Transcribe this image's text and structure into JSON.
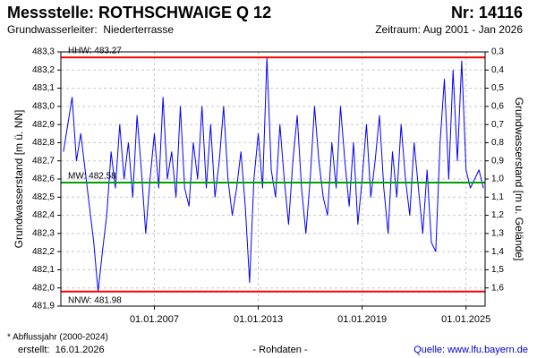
{
  "chart_data": {
    "type": "line",
    "title": "Messstelle: ROTHSCHWAIGE Q 12",
    "number": "Nr: 14116",
    "subtitle": "Grundwasserleiter:  Niederterrasse",
    "period": "Zeitraum: Aug 2001 - Jan 2026",
    "ylabel": "Grundwasserstand [m ü. NN]",
    "y2label": "Grundwasserstand [m u. Gelände]",
    "footnote": "* Abflussjahr (2000-2024)",
    "created": "erstellt:  16.01.2026",
    "data_note": "- Rohdaten -",
    "source": "Quelle: www.lfu.bayern.de",
    "grid": true,
    "xlim": [
      2001.6,
      2026.1
    ],
    "xticks": [
      {
        "value": 2007,
        "label": "01.01.2007"
      },
      {
        "value": 2013,
        "label": "01.01.2013"
      },
      {
        "value": 2019,
        "label": "01.01.2019"
      },
      {
        "value": 2025,
        "label": "01.01.2025"
      }
    ],
    "ylim": [
      481.9,
      483.3
    ],
    "yticks": [
      {
        "value": 481.9,
        "label": "481,9"
      },
      {
        "value": 482.0,
        "label": "482,0"
      },
      {
        "value": 482.1,
        "label": "482,1"
      },
      {
        "value": 482.2,
        "label": "482,2"
      },
      {
        "value": 482.3,
        "label": "482,3"
      },
      {
        "value": 482.4,
        "label": "482,4"
      },
      {
        "value": 482.5,
        "label": "482,5"
      },
      {
        "value": 482.6,
        "label": "482,6"
      },
      {
        "value": 482.7,
        "label": "482,7"
      },
      {
        "value": 482.8,
        "label": "482,8"
      },
      {
        "value": 482.9,
        "label": "482,9"
      },
      {
        "value": 483.0,
        "label": "483,0"
      },
      {
        "value": 483.1,
        "label": "483,1"
      },
      {
        "value": 483.2,
        "label": "483,2"
      },
      {
        "value": 483.3,
        "label": "483,3"
      }
    ],
    "y2lim": [
      1.7,
      0.3
    ],
    "y2ticks": [
      {
        "value": 0.3,
        "label": "0,3"
      },
      {
        "value": 0.4,
        "label": "0,4"
      },
      {
        "value": 0.5,
        "label": "0,5"
      },
      {
        "value": 0.6,
        "label": "0,6"
      },
      {
        "value": 0.7,
        "label": "0,7"
      },
      {
        "value": 0.8,
        "label": "0,8"
      },
      {
        "value": 0.9,
        "label": "0,9"
      },
      {
        "value": 1.0,
        "label": "1,0"
      },
      {
        "value": 1.1,
        "label": "1,1"
      },
      {
        "value": 1.2,
        "label": "1,2"
      },
      {
        "value": 1.3,
        "label": "1,3"
      },
      {
        "value": 1.4,
        "label": "1,4"
      },
      {
        "value": 1.5,
        "label": "1,5"
      },
      {
        "value": 1.6,
        "label": "1,6"
      }
    ],
    "reference_lines": [
      {
        "label": "HHW: 483.27",
        "value": 483.27,
        "color": "#ff0000"
      },
      {
        "label": "MW: 482.58",
        "value": 482.58,
        "color": "#00a000"
      },
      {
        "label": "NNW: 481.98",
        "value": 481.98,
        "color": "#ff0000"
      }
    ],
    "series": [
      {
        "color": "#0000ff",
        "x": [
          2001.75,
          2002.0,
          2002.25,
          2002.5,
          2002.75,
          2003.0,
          2003.25,
          2003.5,
          2003.75,
          2004.0,
          2004.25,
          2004.5,
          2004.75,
          2005.0,
          2005.25,
          2005.5,
          2005.75,
          2006.0,
          2006.25,
          2006.5,
          2006.75,
          2007.0,
          2007.25,
          2007.5,
          2007.75,
          2008.0,
          2008.25,
          2008.5,
          2008.75,
          2009.0,
          2009.25,
          2009.5,
          2009.75,
          2010.0,
          2010.25,
          2010.5,
          2010.75,
          2011.0,
          2011.25,
          2011.5,
          2011.75,
          2012.0,
          2012.25,
          2012.5,
          2012.75,
          2013.0,
          2013.25,
          2013.5,
          2013.75,
          2014.0,
          2014.25,
          2014.5,
          2014.75,
          2015.0,
          2015.25,
          2015.5,
          2015.75,
          2016.0,
          2016.25,
          2016.5,
          2016.75,
          2017.0,
          2017.25,
          2017.5,
          2017.75,
          2018.0,
          2018.25,
          2018.5,
          2018.75,
          2019.0,
          2019.25,
          2019.5,
          2019.75,
          2020.0,
          2020.25,
          2020.5,
          2020.75,
          2021.0,
          2021.25,
          2021.5,
          2021.75,
          2022.0,
          2022.25,
          2022.5,
          2022.75,
          2023.0,
          2023.25,
          2023.5,
          2023.75,
          2024.0,
          2024.25,
          2024.5,
          2024.75,
          2025.0,
          2025.25,
          2025.5,
          2025.75,
          2026.0
        ],
        "values": [
          482.75,
          482.9,
          483.05,
          482.7,
          482.85,
          482.65,
          482.45,
          482.25,
          481.98,
          482.2,
          482.4,
          482.75,
          482.55,
          482.9,
          482.6,
          482.8,
          482.5,
          482.95,
          482.65,
          482.3,
          482.6,
          482.85,
          482.55,
          483.05,
          482.6,
          482.75,
          482.5,
          483.0,
          482.55,
          482.45,
          482.8,
          482.6,
          483.0,
          482.55,
          482.9,
          482.5,
          482.7,
          483.0,
          482.6,
          482.4,
          482.55,
          482.75,
          482.45,
          482.03,
          482.6,
          482.85,
          482.55,
          483.27,
          482.65,
          482.5,
          482.9,
          482.6,
          482.35,
          482.7,
          482.95,
          482.55,
          482.3,
          482.6,
          483.0,
          482.7,
          482.5,
          482.4,
          482.8,
          482.55,
          483.0,
          482.7,
          482.45,
          482.8,
          482.35,
          482.6,
          482.9,
          482.5,
          482.7,
          482.95,
          482.55,
          482.3,
          482.75,
          482.5,
          482.9,
          482.6,
          482.4,
          482.8,
          482.55,
          482.3,
          482.65,
          482.25,
          482.2,
          482.8,
          483.15,
          482.6,
          483.2,
          482.7,
          483.25,
          482.65,
          482.55,
          482.6,
          482.65,
          482.55
        ]
      }
    ]
  }
}
